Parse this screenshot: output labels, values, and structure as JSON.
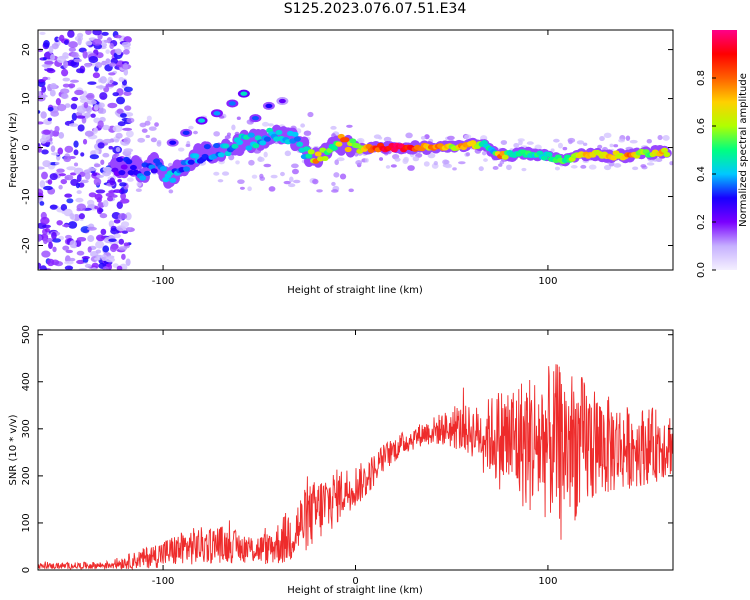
{
  "title": "S125.2023.076.07.51.E34",
  "chart_data": [
    {
      "type": "heatmap",
      "xlabel": "Height of straight line (km)",
      "ylabel": "Frequency (Hz)",
      "xlim": [
        -165,
        165
      ],
      "ylim": [
        -25,
        24
      ],
      "x_ticks": [
        -100,
        100
      ],
      "y_ticks": [
        -20,
        -10,
        0,
        10,
        20
      ],
      "colorbar": {
        "label": "Normalized spectral amplitude",
        "range": [
          0,
          1
        ],
        "ticks": [
          "0.0",
          "0.2",
          "0.4",
          "0.6",
          "0.8"
        ],
        "colors": [
          "#f4f0ff",
          "#c6b0ff",
          "#7a00ff",
          "#1800ff",
          "#00c8ff",
          "#00ff80",
          "#b0ff00",
          "#ffd000",
          "#ff6000",
          "#ff0000",
          "#ff0088"
        ]
      },
      "ridge": [
        {
          "x": -125,
          "y": -4,
          "amp": 0.2
        },
        {
          "x": -118,
          "y": -3.5,
          "amp": 0.28
        },
        {
          "x": -110,
          "y": -5,
          "amp": 0.35
        },
        {
          "x": -103,
          "y": -3,
          "amp": 0.3
        },
        {
          "x": -96,
          "y": -6.5,
          "amp": 0.4
        },
        {
          "x": -90,
          "y": -4,
          "amp": 0.32
        },
        {
          "x": -84,
          "y": -2,
          "amp": 0.36
        },
        {
          "x": -78,
          "y": -1,
          "amp": 0.3
        },
        {
          "x": -70,
          "y": -0.5,
          "amp": 0.38
        },
        {
          "x": -62,
          "y": 0.5,
          "amp": 0.4
        },
        {
          "x": -54,
          "y": 1.5,
          "amp": 0.42
        },
        {
          "x": -46,
          "y": 2,
          "amp": 0.4
        },
        {
          "x": -38,
          "y": 2.5,
          "amp": 0.44
        },
        {
          "x": -30,
          "y": 1,
          "amp": 0.4
        },
        {
          "x": -24,
          "y": -1.5,
          "amp": 0.46
        },
        {
          "x": -20,
          "y": -2.5,
          "amp": 0.78
        },
        {
          "x": -15,
          "y": -1,
          "amp": 0.52
        },
        {
          "x": -10,
          "y": 0,
          "amp": 0.5
        },
        {
          "x": -6,
          "y": 1.5,
          "amp": 0.85
        },
        {
          "x": -2,
          "y": 0.5,
          "amp": 0.55
        },
        {
          "x": 3,
          "y": -0.5,
          "amp": 0.6
        },
        {
          "x": 9,
          "y": 0,
          "amp": 0.8
        },
        {
          "x": 16,
          "y": 0,
          "amp": 0.9
        },
        {
          "x": 23,
          "y": 0,
          "amp": 0.95
        },
        {
          "x": 30,
          "y": 0,
          "amp": 0.88
        },
        {
          "x": 37,
          "y": 0,
          "amp": 0.7
        },
        {
          "x": 44,
          "y": 0,
          "amp": 0.82
        },
        {
          "x": 51,
          "y": 0,
          "amp": 0.6
        },
        {
          "x": 56,
          "y": 0.5,
          "amp": 0.75
        },
        {
          "x": 61,
          "y": 0.5,
          "amp": 0.72
        },
        {
          "x": 67,
          "y": 0.8,
          "amp": 0.45
        },
        {
          "x": 72,
          "y": -1,
          "amp": 0.42
        },
        {
          "x": 75,
          "y": -1.5,
          "amp": 0.8
        },
        {
          "x": 81,
          "y": -1.5,
          "amp": 0.44
        },
        {
          "x": 88,
          "y": -1.2,
          "amp": 0.5
        },
        {
          "x": 95,
          "y": -1.5,
          "amp": 0.46
        },
        {
          "x": 101,
          "y": -1.8,
          "amp": 0.44
        },
        {
          "x": 107,
          "y": -2.5,
          "amp": 0.5
        },
        {
          "x": 112,
          "y": -2.2,
          "amp": 0.58
        },
        {
          "x": 117,
          "y": -1.5,
          "amp": 0.65
        },
        {
          "x": 122,
          "y": -1.2,
          "amp": 0.72
        },
        {
          "x": 127,
          "y": -1.5,
          "amp": 0.62
        },
        {
          "x": 132,
          "y": -1.8,
          "amp": 0.78
        },
        {
          "x": 137,
          "y": -1.5,
          "amp": 0.6
        },
        {
          "x": 142,
          "y": -1.8,
          "amp": 0.8
        },
        {
          "x": 148,
          "y": -1.2,
          "amp": 0.58
        },
        {
          "x": 154,
          "y": -1.0,
          "amp": 0.55
        },
        {
          "x": 159,
          "y": -0.8,
          "amp": 0.75
        },
        {
          "x": 163,
          "y": -1.0,
          "amp": 0.5
        }
      ],
      "branch": [
        {
          "x": -95,
          "y": 1,
          "amp": 0.3
        },
        {
          "x": -88,
          "y": 3,
          "amp": 0.32
        },
        {
          "x": -80,
          "y": 5.5,
          "amp": 0.42
        },
        {
          "x": -72,
          "y": 7,
          "amp": 0.38
        },
        {
          "x": -64,
          "y": 9,
          "amp": 0.36
        },
        {
          "x": -58,
          "y": 11,
          "amp": 0.45
        },
        {
          "x": -52,
          "y": 6,
          "amp": 0.34
        },
        {
          "x": -45,
          "y": 8.5,
          "amp": 0.3
        },
        {
          "x": -38,
          "y": 9.5,
          "amp": 0.22
        }
      ]
    },
    {
      "type": "line",
      "xlabel": "Height of straight line (km)",
      "ylabel": "SNR (10 * v/v)",
      "xlim": [
        -165,
        165
      ],
      "ylim": [
        0,
        510
      ],
      "x_ticks": [
        -100,
        0,
        100
      ],
      "y_ticks": [
        0,
        100,
        200,
        300,
        400,
        500
      ],
      "color": "#ee2b2b",
      "envelope": [
        {
          "x": -165,
          "base": 8,
          "amp": 6
        },
        {
          "x": -130,
          "base": 10,
          "amp": 8
        },
        {
          "x": -115,
          "base": 20,
          "amp": 18
        },
        {
          "x": -100,
          "base": 35,
          "amp": 30
        },
        {
          "x": -85,
          "base": 50,
          "amp": 40
        },
        {
          "x": -70,
          "base": 55,
          "amp": 40
        },
        {
          "x": -55,
          "base": 45,
          "amp": 30
        },
        {
          "x": -45,
          "base": 45,
          "amp": 35
        },
        {
          "x": -35,
          "base": 70,
          "amp": 60
        },
        {
          "x": -25,
          "base": 110,
          "amp": 70
        },
        {
          "x": -15,
          "base": 140,
          "amp": 70
        },
        {
          "x": -5,
          "base": 170,
          "amp": 50
        },
        {
          "x": 5,
          "base": 190,
          "amp": 40
        },
        {
          "x": 15,
          "base": 240,
          "amp": 30
        },
        {
          "x": 25,
          "base": 270,
          "amp": 25
        },
        {
          "x": 35,
          "base": 290,
          "amp": 25
        },
        {
          "x": 45,
          "base": 300,
          "amp": 35
        },
        {
          "x": 55,
          "base": 300,
          "amp": 50
        },
        {
          "x": 65,
          "base": 290,
          "amp": 60
        },
        {
          "x": 75,
          "base": 280,
          "amp": 110
        },
        {
          "x": 90,
          "base": 270,
          "amp": 150
        },
        {
          "x": 105,
          "base": 270,
          "amp": 170
        },
        {
          "x": 115,
          "base": 265,
          "amp": 160
        },
        {
          "x": 125,
          "base": 265,
          "amp": 120
        },
        {
          "x": 140,
          "base": 260,
          "amp": 90
        },
        {
          "x": 155,
          "base": 265,
          "amp": 80
        },
        {
          "x": 165,
          "base": 270,
          "amp": 70
        }
      ]
    }
  ]
}
